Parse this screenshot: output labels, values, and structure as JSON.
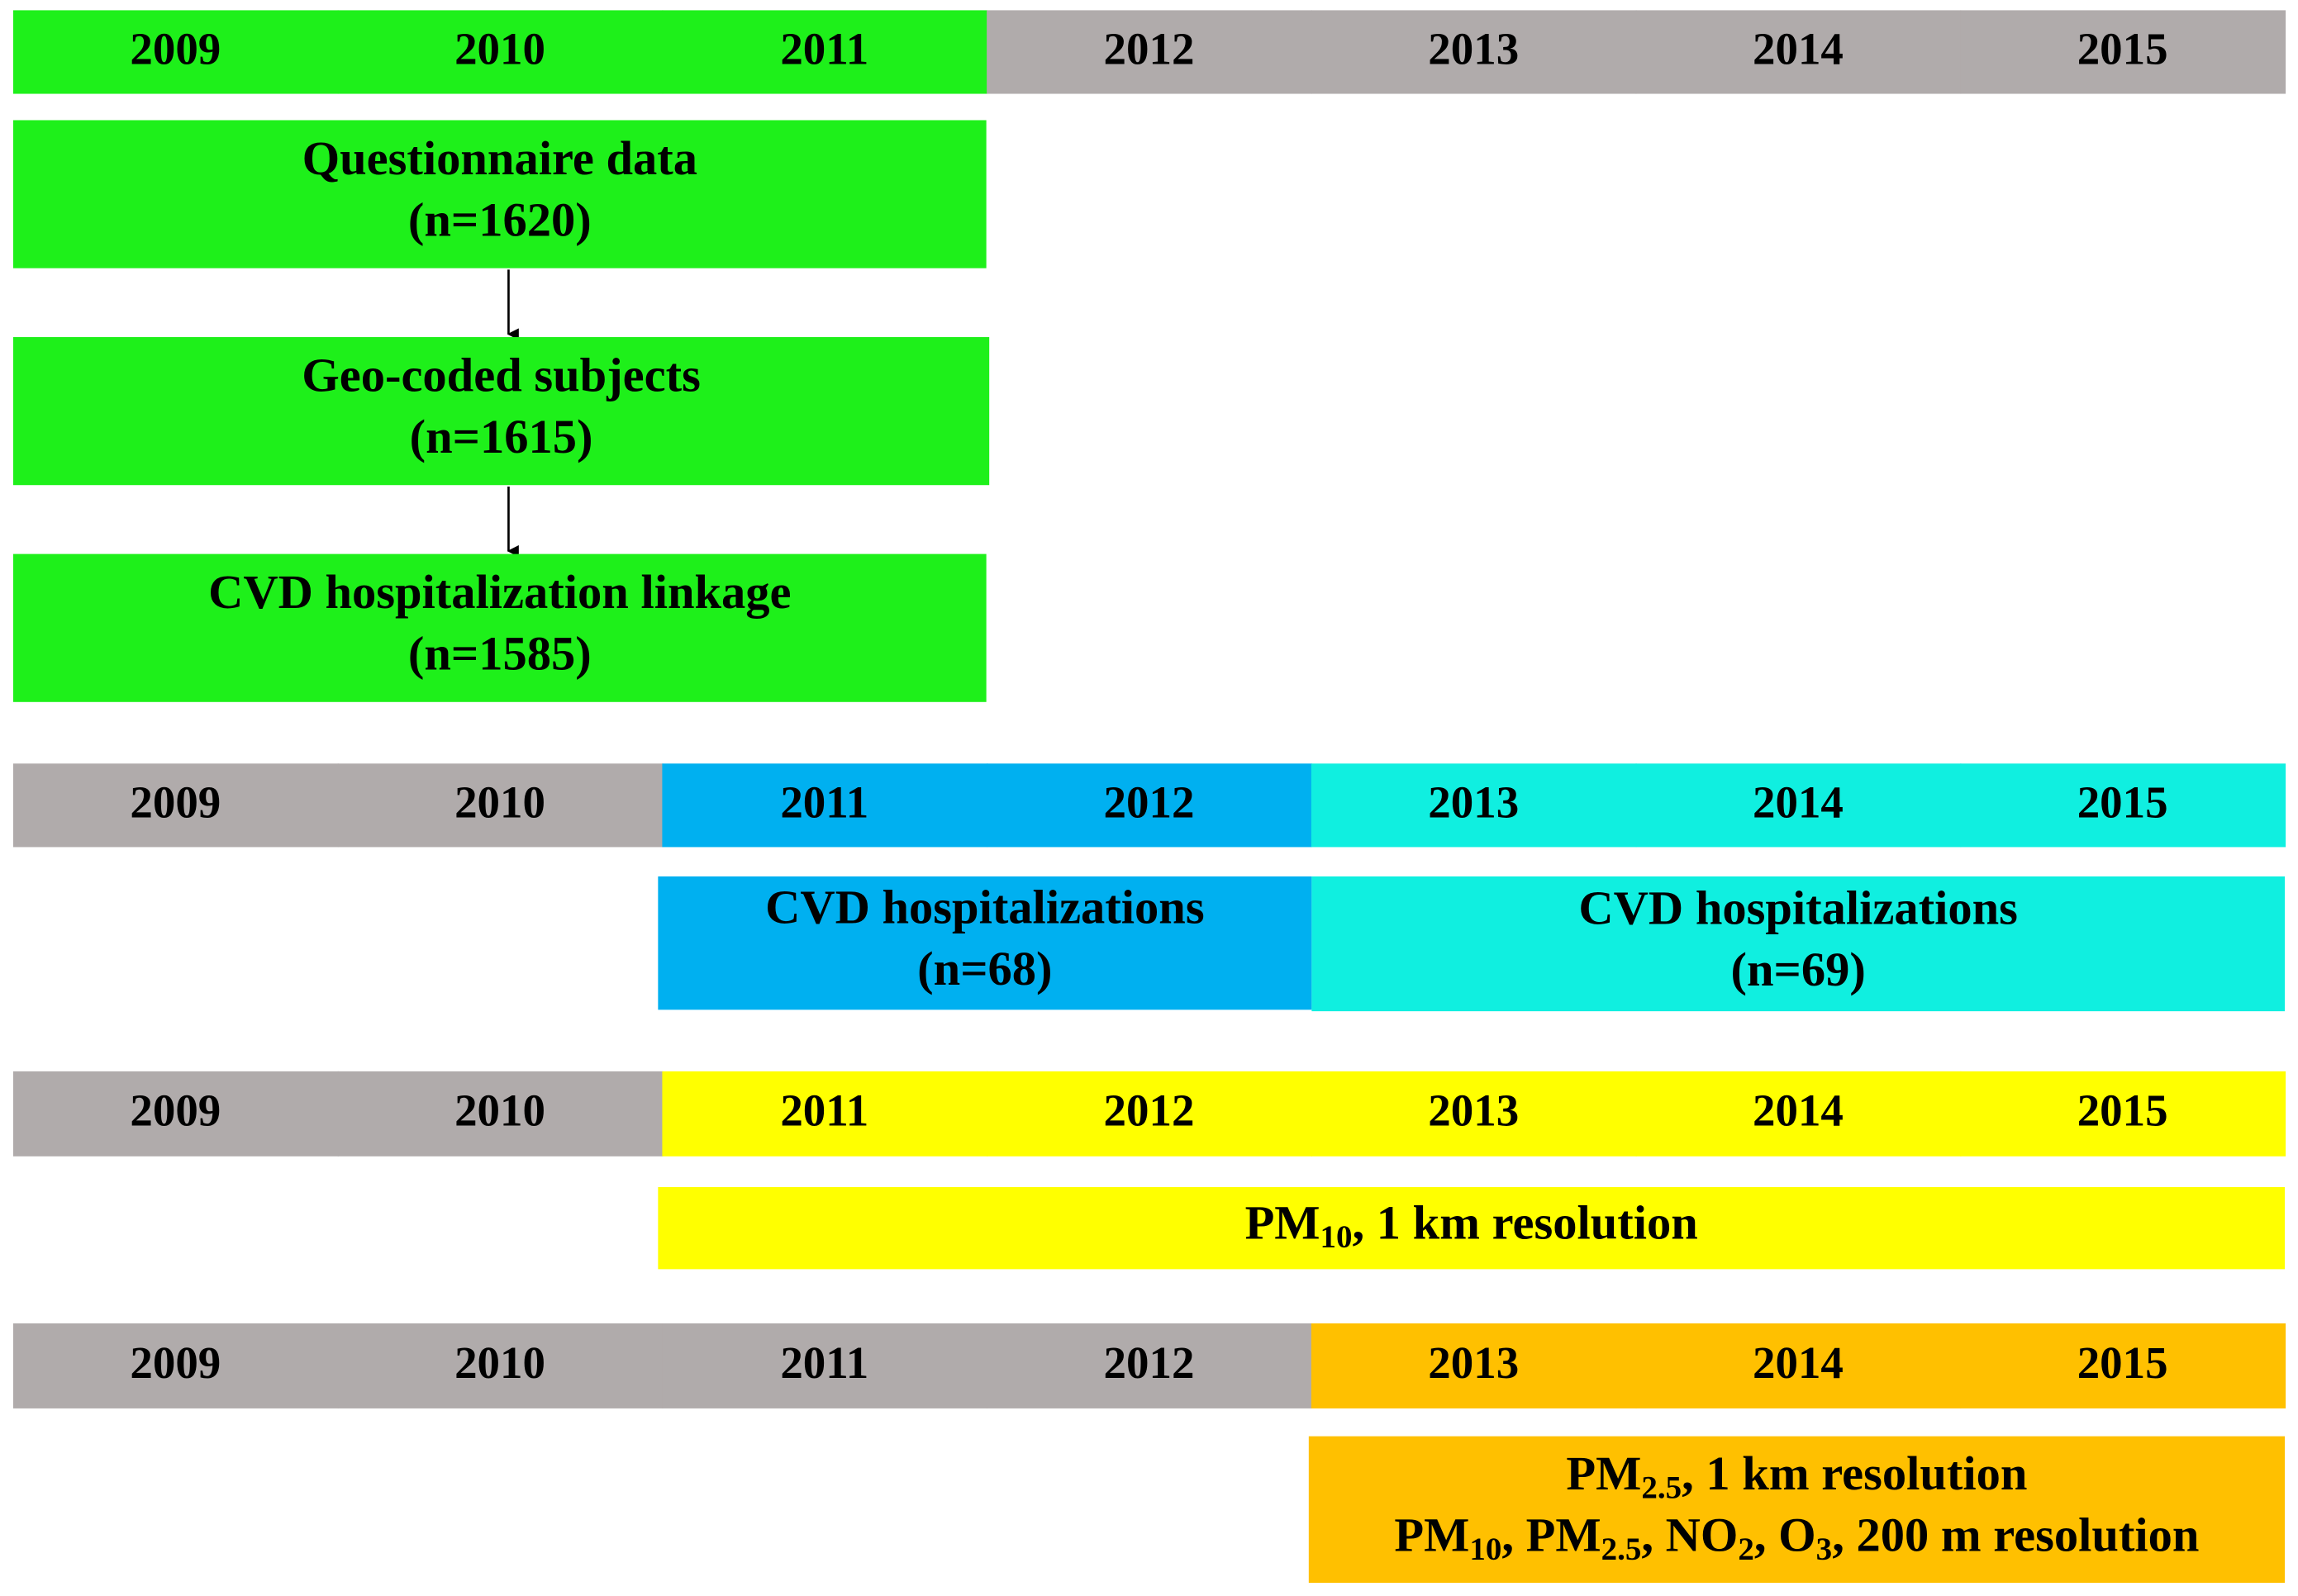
{
  "timelines": [
    {
      "years": [
        "2009",
        "2010",
        "2011",
        "2012",
        "2013",
        "2014",
        "2015"
      ]
    },
    {
      "years": [
        "2009",
        "2010",
        "2011",
        "2012",
        "2013",
        "2014",
        "2015"
      ]
    },
    {
      "years": [
        "2009",
        "2010",
        "2011",
        "2012",
        "2013",
        "2014",
        "2015"
      ]
    },
    {
      "years": [
        "2009",
        "2010",
        "2011",
        "2012",
        "2013",
        "2014",
        "2015"
      ]
    }
  ],
  "boxes": [
    {
      "lines": [
        [
          {
            "text": "Questionnaire data"
          }
        ],
        [
          {
            "text": "(n=1620)"
          }
        ]
      ]
    },
    {
      "lines": [
        [
          {
            "text": "Geo-coded subjects"
          }
        ],
        [
          {
            "text": "(n=1615)"
          }
        ]
      ]
    },
    {
      "lines": [
        [
          {
            "text": "CVD hospitalization linkage"
          }
        ],
        [
          {
            "text": "(n=1585)"
          }
        ]
      ]
    },
    {
      "lines": [
        [
          {
            "text": "CVD hospitalizations"
          }
        ],
        [
          {
            "text": "(n=68)"
          }
        ]
      ]
    },
    {
      "lines": [
        [
          {
            "text": "CVD hospitalizations"
          }
        ],
        [
          {
            "text": "(n=69)"
          }
        ]
      ]
    },
    {
      "lines": [
        [
          {
            "text": "PM"
          },
          {
            "sub": "10"
          },
          {
            "text": ", 1 km resolution"
          }
        ]
      ]
    },
    {
      "lines": [
        [
          {
            "text": "PM"
          },
          {
            "sub": "2.5"
          },
          {
            "text": ", 1 km resolution"
          }
        ],
        [
          {
            "text": "PM"
          },
          {
            "sub": "10"
          },
          {
            "text": ", PM"
          },
          {
            "sub": "2.5"
          },
          {
            "text": ", NO"
          },
          {
            "sub": "2"
          },
          {
            "text": ", O"
          },
          {
            "sub": "3"
          },
          {
            "text": ", 200 m resolution"
          }
        ]
      ]
    }
  ]
}
